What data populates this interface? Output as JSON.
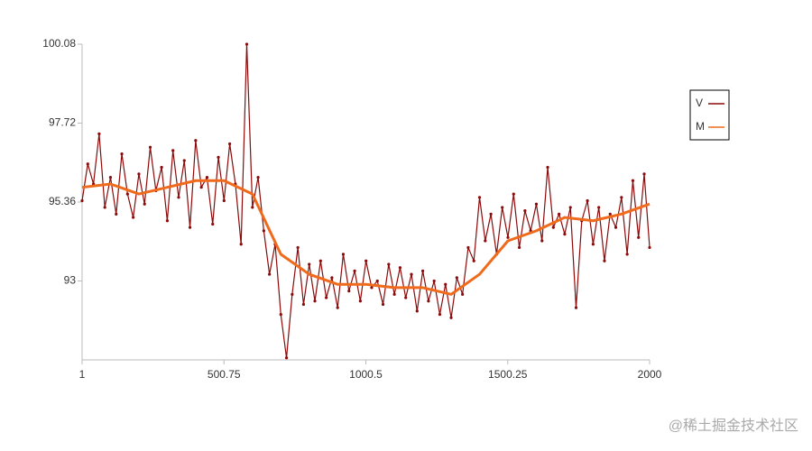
{
  "chart_data": {
    "type": "line",
    "xlim": [
      1,
      2000
    ],
    "xticks": [
      1,
      500.75,
      1000.5,
      1500.25,
      2000
    ],
    "ylim": [
      90.64,
      100.08
    ],
    "yticks": [
      93,
      95.36,
      97.72,
      100.08
    ],
    "legend": "top-right",
    "watermark": "@稀土掘金技术社区",
    "series": [
      {
        "name": "V",
        "color": "#8b0a0a",
        "markers": true,
        "x": [
          1,
          21,
          41,
          61,
          81,
          101,
          121,
          141,
          161,
          181,
          201,
          221,
          241,
          261,
          281,
          301,
          321,
          341,
          361,
          381,
          401,
          421,
          441,
          461,
          481,
          501,
          521,
          541,
          561,
          581,
          601,
          621,
          641,
          661,
          681,
          701,
          721,
          741,
          761,
          781,
          801,
          821,
          841,
          861,
          881,
          901,
          921,
          941,
          961,
          981,
          1001,
          1021,
          1041,
          1061,
          1081,
          1101,
          1121,
          1141,
          1161,
          1181,
          1201,
          1221,
          1241,
          1261,
          1281,
          1301,
          1321,
          1341,
          1361,
          1381,
          1401,
          1421,
          1441,
          1461,
          1481,
          1501,
          1521,
          1541,
          1561,
          1581,
          1601,
          1621,
          1641,
          1661,
          1681,
          1701,
          1721,
          1741,
          1761,
          1781,
          1801,
          1821,
          1841,
          1861,
          1881,
          1901,
          1921,
          1941,
          1961,
          1981,
          2000
        ],
        "values": [
          95.4,
          96.5,
          95.9,
          97.4,
          95.2,
          96.1,
          95.0,
          96.8,
          95.6,
          94.9,
          96.2,
          95.3,
          97.0,
          95.7,
          96.4,
          94.8,
          96.9,
          95.5,
          96.6,
          94.6,
          97.2,
          95.8,
          96.1,
          94.7,
          96.7,
          95.4,
          97.1,
          95.9,
          94.1,
          100.08,
          95.2,
          96.1,
          94.5,
          93.2,
          94.1,
          92.0,
          90.7,
          92.6,
          94.0,
          92.3,
          93.5,
          92.4,
          93.6,
          92.5,
          93.1,
          92.2,
          93.8,
          92.7,
          93.3,
          92.4,
          93.6,
          92.8,
          93.0,
          92.3,
          93.5,
          92.6,
          93.4,
          92.5,
          93.2,
          92.1,
          93.3,
          92.4,
          93.0,
          92.0,
          92.9,
          91.9,
          93.1,
          92.6,
          94.0,
          93.6,
          95.5,
          94.2,
          95.0,
          93.8,
          95.2,
          94.3,
          95.6,
          94.0,
          95.1,
          94.5,
          95.3,
          94.2,
          96.4,
          94.6,
          95.0,
          94.4,
          95.2,
          92.2,
          94.8,
          95.4,
          94.1,
          95.2,
          93.6,
          95.0,
          94.6,
          95.5,
          93.8,
          96.0,
          94.3,
          96.2,
          94.0
        ]
      },
      {
        "name": "M",
        "color": "#f06a1c",
        "markers": false,
        "x": [
          1,
          101,
          201,
          301,
          401,
          501,
          601,
          701,
          801,
          901,
          1001,
          1101,
          1201,
          1301,
          1401,
          1501,
          1601,
          1701,
          1801,
          1901,
          2000
        ],
        "values": [
          95.8,
          95.9,
          95.6,
          95.8,
          96.0,
          96.0,
          95.6,
          93.8,
          93.2,
          92.9,
          92.9,
          92.8,
          92.8,
          92.6,
          93.2,
          94.2,
          94.5,
          94.9,
          94.8,
          95.0,
          95.3
        ]
      }
    ]
  }
}
